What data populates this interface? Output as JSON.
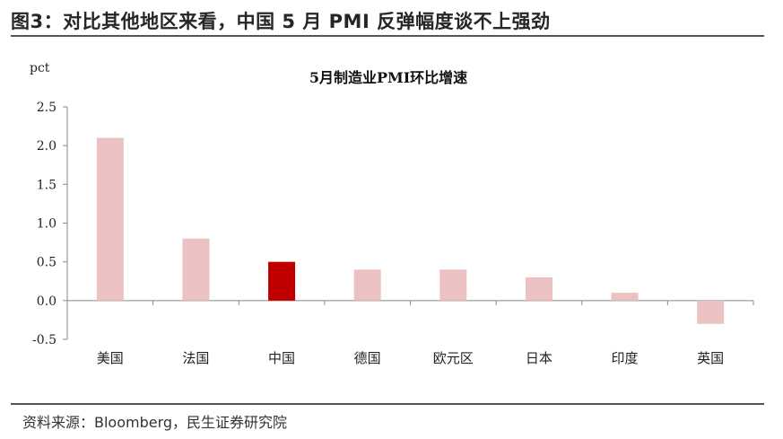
{
  "header": {
    "title": "图3：对比其他地区来看，中国 5 月 PMI 反弹幅度谈不上强劲"
  },
  "footer": {
    "source": "资料来源：Bloomberg，民生证券研究院"
  },
  "colors": {
    "bar_default": "#EBC1C1",
    "bar_highlight": "#C00000",
    "axis": "#888888"
  },
  "chart_data": {
    "type": "bar",
    "title": "5月制造业PMI环比增速",
    "ylabel": "pct",
    "xlabel": "",
    "categories": [
      "美国",
      "法国",
      "中国",
      "德国",
      "欧元区",
      "日本",
      "印度",
      "英国"
    ],
    "values": [
      2.1,
      0.8,
      0.5,
      0.4,
      0.4,
      0.3,
      0.1,
      -0.3
    ],
    "highlight_category": "中国",
    "ylim": [
      -0.5,
      2.5
    ],
    "yticks": [
      -0.5,
      0.0,
      0.5,
      1.0,
      1.5,
      2.0,
      2.5
    ],
    "ytick_labels": [
      "-0.5",
      "0.0",
      "0.5",
      "1.0",
      "1.5",
      "2.0",
      "2.5"
    ],
    "grid": false,
    "legend": "none"
  }
}
